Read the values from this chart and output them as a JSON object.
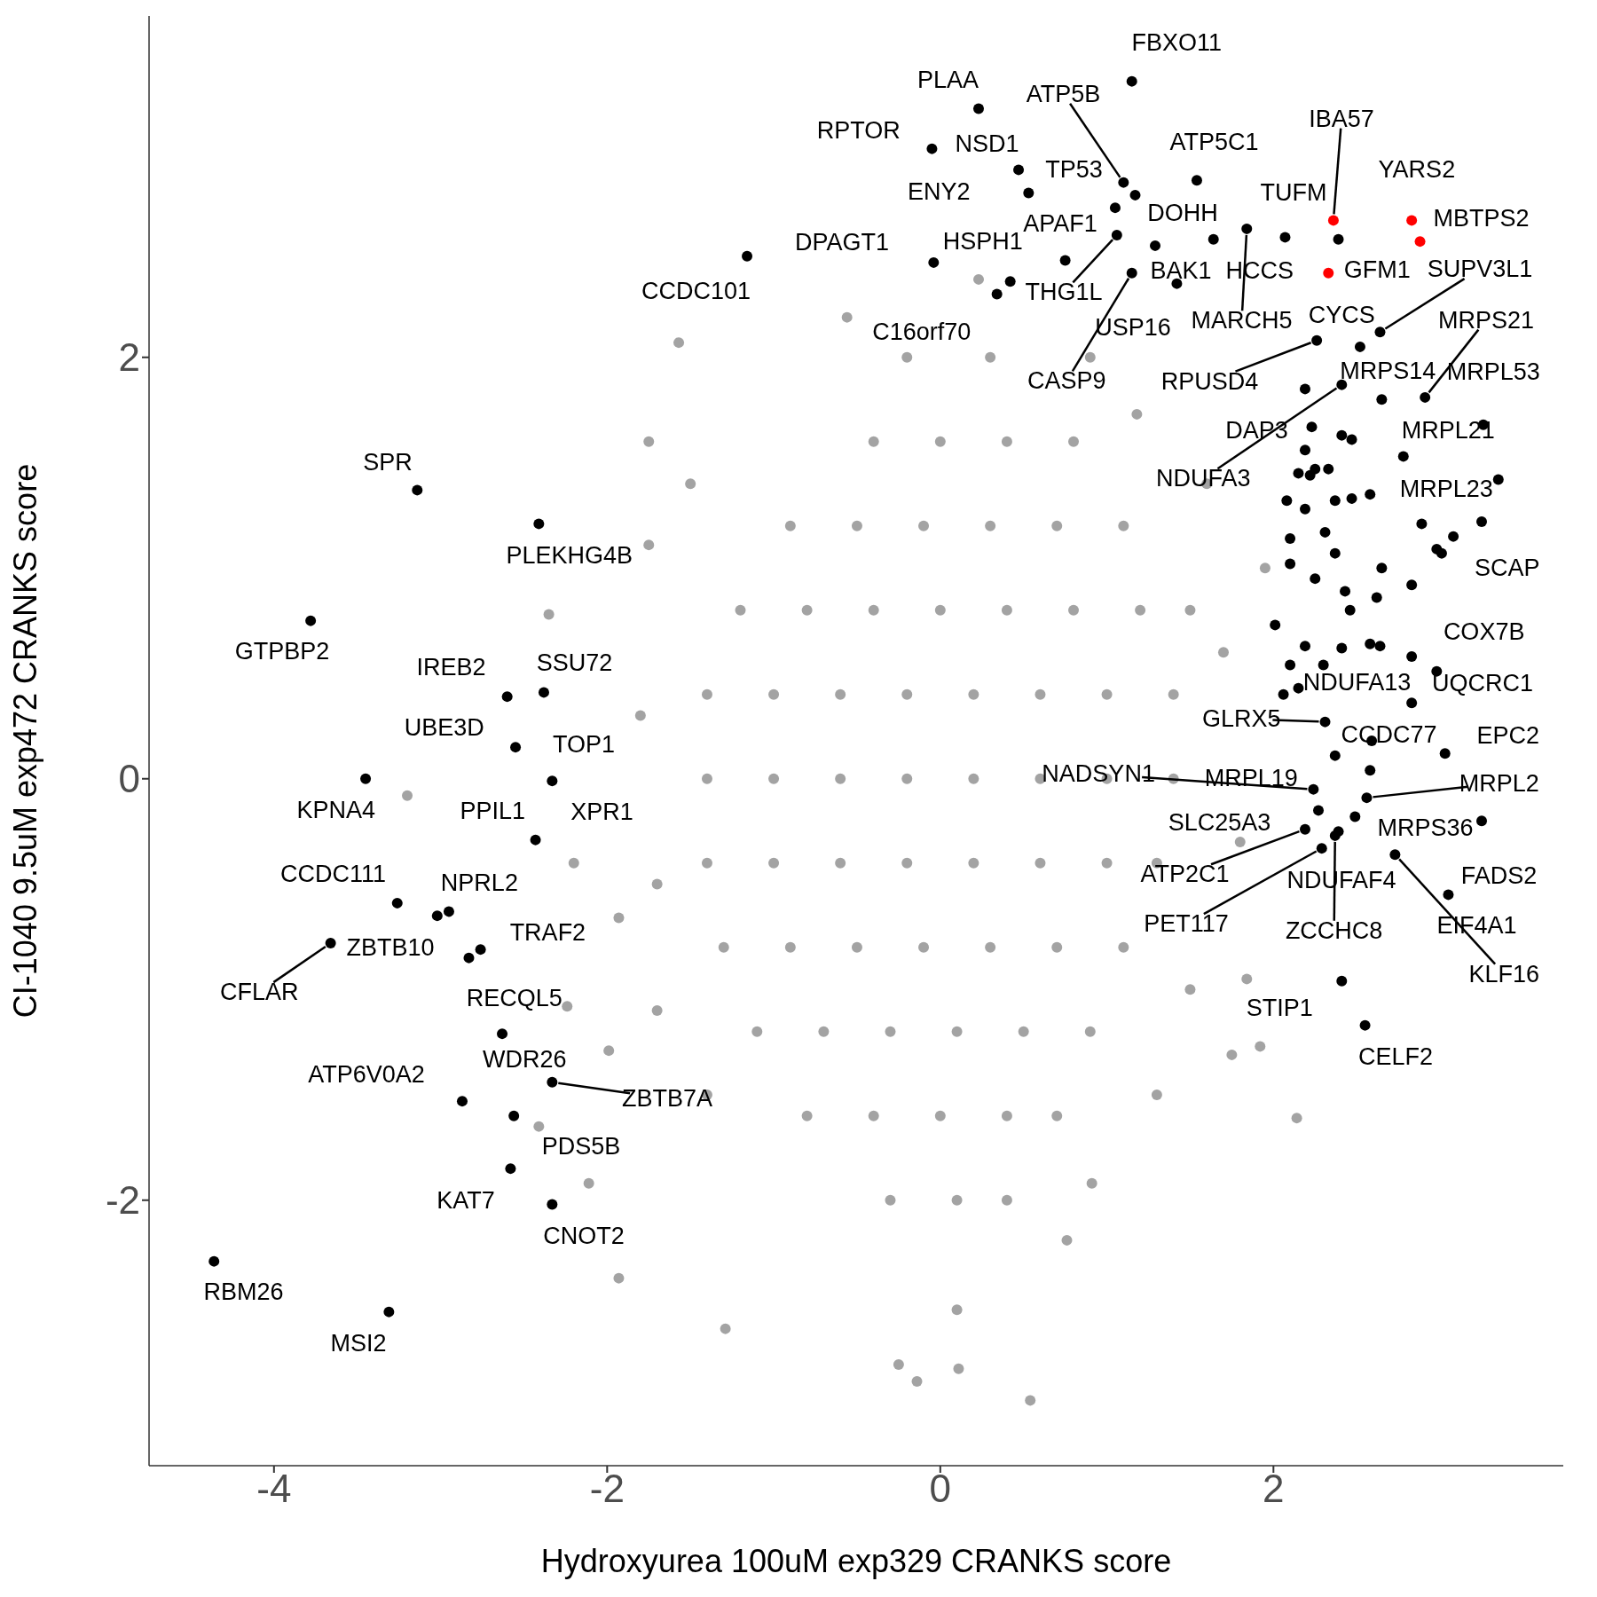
{
  "chart_data": {
    "type": "scatter",
    "xlabel": "Hydroxyurea 100uM exp329 CRANKS score",
    "ylabel": "CI-1040 9.5uM exp472 CRANKS score",
    "xlim": [
      -4.75,
      3.74
    ],
    "ylim": [
      -3.26,
      3.62
    ],
    "xticks": [
      -4,
      -2,
      0,
      2
    ],
    "yticks": [
      -2,
      0,
      2
    ],
    "marker": "circle",
    "series": [
      {
        "color": "#a3a3a3",
        "x": [
          -0.4,
          0,
          0.4,
          0.8,
          -0.9,
          -0.5,
          -0.1,
          0.3,
          0.7,
          1.1,
          -1.2,
          -0.8,
          -0.4,
          0,
          0.4,
          0.8,
          1.2,
          1.5,
          -1.4,
          -1,
          -0.6,
          -0.2,
          0.2,
          0.6,
          1,
          1.4,
          -1.4,
          -1,
          -0.6,
          -0.2,
          0.2,
          0.6,
          1,
          1.4,
          -1.4,
          -1,
          -0.6,
          -0.2,
          0.2,
          0.6,
          1,
          1.3,
          -1.3,
          -0.9,
          -0.5,
          -0.1,
          0.3,
          0.7,
          1.1,
          -1.1,
          -0.7,
          -0.3,
          0.1,
          0.5,
          0.9,
          -0.8,
          -0.4,
          0,
          0.4,
          0.7,
          -0.3,
          0.1,
          0.4,
          -0.2,
          0.3,
          0.9,
          -1.8,
          -1.7,
          1.7,
          1.8,
          1.6,
          -1.5,
          -1.4,
          1.3,
          1.5,
          -1.7,
          -1.57,
          -1.29,
          2.14,
          0.54,
          0.11,
          -0.14,
          -0.25,
          -3.2,
          -0.56,
          0.23,
          0.76,
          0.91,
          0.1,
          -1.93,
          -2.11,
          -1.75,
          -1.75,
          -2.2,
          -2.24,
          -2.41,
          1.84,
          1.92,
          1.18,
          1.95,
          1.75,
          -2.35,
          -1.93,
          -1.99
        ],
        "values": [
          1.6,
          1.6,
          1.6,
          1.6,
          1.2,
          1.2,
          1.2,
          1.2,
          1.2,
          1.2,
          0.8,
          0.8,
          0.8,
          0.8,
          0.8,
          0.8,
          0.8,
          0.8,
          0.4,
          0.4,
          0.4,
          0.4,
          0.4,
          0.4,
          0.4,
          0.4,
          0,
          0,
          0,
          0,
          0,
          0,
          0,
          0,
          -0.4,
          -0.4,
          -0.4,
          -0.4,
          -0.4,
          -0.4,
          -0.4,
          -0.4,
          -0.8,
          -0.8,
          -0.8,
          -0.8,
          -0.8,
          -0.8,
          -0.8,
          -1.2,
          -1.2,
          -1.2,
          -1.2,
          -1.2,
          -1.2,
          -1.6,
          -1.6,
          -1.6,
          -1.6,
          -1.6,
          -2,
          -2,
          -2,
          2,
          2,
          2,
          0.3,
          -0.5,
          0.6,
          -0.3,
          1.4,
          1.4,
          -1.5,
          -1.5,
          -1,
          -1.1,
          2.07,
          -2.61,
          -1.61,
          -2.95,
          -2.8,
          -2.86,
          -2.78,
          -0.08,
          2.19,
          2.37,
          -2.19,
          -1.92,
          -2.52,
          -2.37,
          -1.92,
          1.6,
          1.11,
          -0.4,
          -1.08,
          -1.65,
          -0.95,
          -1.27,
          1.73,
          1,
          -1.31,
          0.78,
          -0.66,
          -1.29
        ]
      },
      {
        "color": "#000000",
        "x": [
          -4.36,
          -3.31,
          -3.14,
          -3.78,
          -3.45,
          -3.26,
          -3.66,
          -3.02,
          -2.95,
          -2.83,
          -2.76,
          -2.41,
          -2.6,
          -2.38,
          -2.55,
          -2.33,
          -2.43,
          -2.63,
          -2.87,
          -2.33,
          -2.56,
          -2.58,
          -2.33,
          -1.16,
          -0.04,
          0.34,
          0.42,
          0.23,
          -0.05,
          0.47,
          0.53,
          1.15,
          1.1,
          1.17,
          1.54,
          1.05,
          1.06,
          1.29,
          1.84,
          1.64,
          2.07,
          0.75,
          1.42,
          1.15,
          2.39,
          2.26,
          2.64,
          2.52,
          2.65,
          2.19,
          2.41,
          2.91,
          2.23,
          2.41,
          2.47,
          3.26,
          2.78,
          2.19,
          2.25,
          2.33,
          2.15,
          2.22,
          3.35,
          2.08,
          2.37,
          2.47,
          2.58,
          2.19,
          2.31,
          2.1,
          2.89,
          3.08,
          3.25,
          2.98,
          3.01,
          2.37,
          2.65,
          2.1,
          2.83,
          2.25,
          2.43,
          2.46,
          2.62,
          2.01,
          2.19,
          2.41,
          2.58,
          2.64,
          2.83,
          2.1,
          2.3,
          2.98,
          2.83,
          2.15,
          2.06,
          2.31,
          2.59,
          2.37,
          3.03,
          2.58,
          2.56,
          2.49,
          2.24,
          2.27,
          2.19,
          2.39,
          2.37,
          2.29,
          2.73,
          3.05,
          3.25,
          2.41,
          2.55
        ],
        "values": [
          -2.29,
          -2.53,
          1.37,
          0.75,
          0,
          -0.59,
          -0.78,
          -0.65,
          -0.63,
          -0.85,
          -0.81,
          1.21,
          0.39,
          0.41,
          0.15,
          -0.01,
          -0.29,
          -1.21,
          -1.53,
          -1.44,
          -1.6,
          -1.85,
          -2.02,
          2.48,
          2.45,
          2.3,
          2.36,
          3.18,
          2.99,
          2.89,
          2.78,
          3.31,
          2.83,
          2.77,
          2.84,
          2.71,
          2.58,
          2.53,
          2.61,
          2.56,
          2.57,
          2.46,
          2.35,
          2.4,
          2.56,
          2.08,
          2.12,
          2.05,
          1.8,
          1.85,
          1.87,
          1.81,
          1.67,
          1.63,
          1.61,
          1.68,
          1.53,
          1.56,
          1.47,
          1.47,
          1.45,
          1.44,
          1.42,
          1.32,
          1.32,
          1.33,
          1.35,
          1.28,
          1.17,
          1.14,
          1.21,
          1.15,
          1.22,
          1.09,
          1.07,
          1.07,
          1,
          1.02,
          0.92,
          0.95,
          0.89,
          0.8,
          0.86,
          0.73,
          0.63,
          0.62,
          0.64,
          0.63,
          0.58,
          0.54,
          0.54,
          0.51,
          0.36,
          0.43,
          0.4,
          0.27,
          0.18,
          0.11,
          0.12,
          0.04,
          -0.09,
          -0.18,
          -0.05,
          -0.15,
          -0.24,
          -0.25,
          -0.27,
          -0.33,
          -0.36,
          -0.55,
          -0.2,
          -0.96,
          -1.17
        ]
      },
      {
        "color": "#ff0000",
        "x": [
          2.36,
          2.83,
          2.88,
          2.33
        ],
        "values": [
          2.65,
          2.65,
          2.55,
          2.4
        ]
      }
    ],
    "annotations": [
      {
        "text": "RBM26",
        "x": -4.36,
        "y": -2.29
      },
      {
        "text": "MSI2",
        "x": -3.31,
        "y": -2.53
      },
      {
        "text": "SPR",
        "x": -3.14,
        "y": 1.37
      },
      {
        "text": "GTPBP2",
        "x": -3.78,
        "y": 0.75
      },
      {
        "text": "KPNA4",
        "x": -3.45,
        "y": 0
      },
      {
        "text": "CCDC111",
        "x": -3.26,
        "y": -0.59
      },
      {
        "text": "CFLAR",
        "x": -3.66,
        "y": -0.78
      },
      {
        "text": "ZBTB10",
        "x": -2.83,
        "y": -0.85
      },
      {
        "text": "NPRL2",
        "x": -2.95,
        "y": -0.63
      },
      {
        "text": "TRAF2",
        "x": -2.76,
        "y": -0.81
      },
      {
        "text": "PLEKHG4B",
        "x": -2.41,
        "y": 1.21
      },
      {
        "text": "IREB2",
        "x": -2.6,
        "y": 0.39
      },
      {
        "text": "SSU72",
        "x": -2.38,
        "y": 0.41
      },
      {
        "text": "UBE3D",
        "x": -2.55,
        "y": 0.15
      },
      {
        "text": "TOP1",
        "x": -2.33,
        "y": -0.01
      },
      {
        "text": "PPIL1",
        "x": -2.43,
        "y": -0.29
      },
      {
        "text": "XPR1",
        "x": -2.33,
        "y": -0.01
      },
      {
        "text": "RECQL5",
        "x": -2.63,
        "y": -1.21
      },
      {
        "text": "ATP6V0A2",
        "x": -2.87,
        "y": -1.53
      },
      {
        "text": "WDR26",
        "x": -2.33,
        "y": -1.44
      },
      {
        "text": "ZBTB7A",
        "x": -2.33,
        "y": -1.44
      },
      {
        "text": "PDS5B",
        "x": -2.56,
        "y": -1.6
      },
      {
        "text": "KAT7",
        "x": -2.58,
        "y": -1.85
      },
      {
        "text": "CNOT2",
        "x": -2.33,
        "y": -2.02
      },
      {
        "text": "CCDC101",
        "x": -1.16,
        "y": 2.48
      },
      {
        "text": "DPAGT1",
        "x": -0.04,
        "y": 2.45
      },
      {
        "text": "HSPH1",
        "x": 0.42,
        "y": 2.36
      },
      {
        "text": "C16orf70",
        "x": 0.34,
        "y": 2.3
      },
      {
        "text": "PLAA",
        "x": 0.23,
        "y": 3.18
      },
      {
        "text": "RPTOR",
        "x": -0.05,
        "y": 2.99
      },
      {
        "text": "NSD1",
        "x": 0.47,
        "y": 2.89
      },
      {
        "text": "ENY2",
        "x": 0.53,
        "y": 2.78
      },
      {
        "text": "FBXO11",
        "x": 1.15,
        "y": 3.31
      },
      {
        "text": "ATP5B",
        "x": 1.1,
        "y": 2.83
      },
      {
        "text": "TP53",
        "x": 1.17,
        "y": 2.77
      },
      {
        "text": "ATP5C1",
        "x": 1.54,
        "y": 2.84
      },
      {
        "text": "APAF1",
        "x": 1.05,
        "y": 2.71
      },
      {
        "text": "DOHH",
        "x": 1.29,
        "y": 2.53
      },
      {
        "text": "THG1L",
        "x": 1.06,
        "y": 2.58
      },
      {
        "text": "BAK1",
        "x": 1.64,
        "y": 2.56
      },
      {
        "text": "HCCS",
        "x": 2.07,
        "y": 2.57
      },
      {
        "text": "USP16",
        "x": 1.42,
        "y": 2.35
      },
      {
        "text": "CASP9",
        "x": 1.15,
        "y": 2.4
      },
      {
        "text": "MARCH5",
        "x": 1.84,
        "y": 2.61
      },
      {
        "text": "IBA57",
        "x": 2.36,
        "y": 2.65
      },
      {
        "text": "YARS2",
        "x": 2.83,
        "y": 2.65
      },
      {
        "text": "TUFM",
        "x": 2.39,
        "y": 2.56
      },
      {
        "text": "MBTPS2",
        "x": 2.88,
        "y": 2.55
      },
      {
        "text": "GFM1",
        "x": 2.33,
        "y": 2.4
      },
      {
        "text": "SUPV3L1",
        "x": 2.64,
        "y": 2.12
      },
      {
        "text": "CYCS",
        "x": 2.52,
        "y": 2.05
      },
      {
        "text": "MRPS21",
        "x": 2.91,
        "y": 1.81
      },
      {
        "text": "RPUSD4",
        "x": 2.26,
        "y": 2.08
      },
      {
        "text": "MRPS14",
        "x": 2.65,
        "y": 1.8
      },
      {
        "text": "MRPL53",
        "x": 3.26,
        "y": 1.68
      },
      {
        "text": "DAP3",
        "x": 2.23,
        "y": 1.67
      },
      {
        "text": "MRPL21",
        "x": 2.78,
        "y": 1.53
      },
      {
        "text": "NDUFA3",
        "x": 2.41,
        "y": 1.87
      },
      {
        "text": "MRPL23",
        "x": 3.35,
        "y": 1.42
      },
      {
        "text": "SCAP",
        "x": 3.25,
        "y": 1.22
      },
      {
        "text": "COX7B",
        "x": 2.83,
        "y": 0.58
      },
      {
        "text": "NDUFA13",
        "x": 2.3,
        "y": 0.54
      },
      {
        "text": "UQCRC1",
        "x": 2.98,
        "y": 0.51
      },
      {
        "text": "GLRX5",
        "x": 2.31,
        "y": 0.27
      },
      {
        "text": "CCDC77",
        "x": 2.37,
        "y": 0.11
      },
      {
        "text": "EPC2",
        "x": 3.03,
        "y": 0.12
      },
      {
        "text": "NADSYN1",
        "x": 2.24,
        "y": -0.05
      },
      {
        "text": "MRPL19",
        "x": 2.27,
        "y": -0.15
      },
      {
        "text": "MRPL2",
        "x": 2.56,
        "y": -0.09
      },
      {
        "text": "SLC25A3",
        "x": 2.19,
        "y": -0.24
      },
      {
        "text": "MRPS36",
        "x": 2.49,
        "y": -0.18
      },
      {
        "text": "ATP2C1",
        "x": 2.19,
        "y": -0.24
      },
      {
        "text": "NDUFAF4",
        "x": 2.39,
        "y": -0.25
      },
      {
        "text": "FADS2",
        "x": 3.25,
        "y": -0.2
      },
      {
        "text": "PET117",
        "x": 2.29,
        "y": -0.33
      },
      {
        "text": "ZCCHC8",
        "x": 2.37,
        "y": -0.27
      },
      {
        "text": "EIF4A1",
        "x": 3.05,
        "y": -0.55
      },
      {
        "text": "KLF16",
        "x": 2.73,
        "y": -0.36
      },
      {
        "text": "STIP1",
        "x": 2.41,
        "y": -0.96
      },
      {
        "text": "CELF2",
        "x": 2.55,
        "y": -1.17
      }
    ]
  }
}
